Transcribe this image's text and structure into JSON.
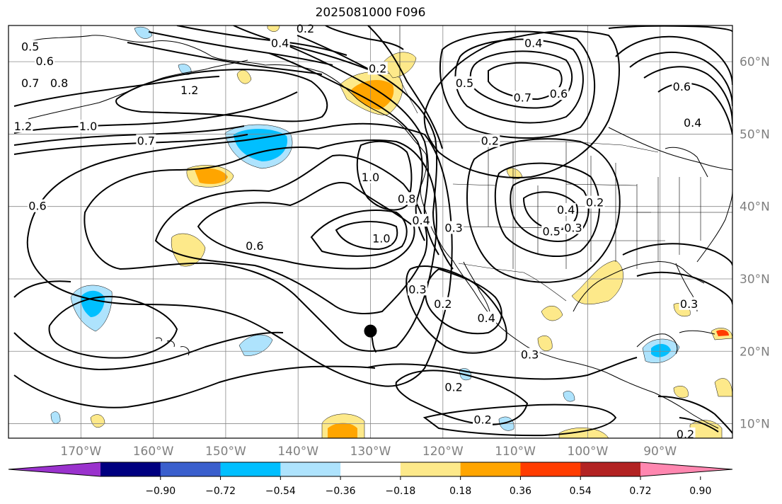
{
  "title": "2025081000 F096",
  "map": {
    "lon_range": [
      -180,
      -80
    ],
    "lat_range": [
      8,
      65
    ],
    "lon_ticks": [
      {
        "lon": -170,
        "label": "170°W"
      },
      {
        "lon": -160,
        "label": "160°W"
      },
      {
        "lon": -150,
        "label": "150°W"
      },
      {
        "lon": -140,
        "label": "140°W"
      },
      {
        "lon": -130,
        "label": "130°W"
      },
      {
        "lon": -120,
        "label": "120°W"
      },
      {
        "lon": -110,
        "label": "110°W"
      },
      {
        "lon": -100,
        "label": "100°W"
      },
      {
        "lon": -90,
        "label": "90°W"
      }
    ],
    "lat_ticks": [
      {
        "lat": 10,
        "label": "10°N"
      },
      {
        "lat": 20,
        "label": "20°N"
      },
      {
        "lat": 30,
        "label": "30°N"
      },
      {
        "lat": 40,
        "label": "40°N"
      },
      {
        "lat": 50,
        "label": "50°N"
      },
      {
        "lat": 60,
        "label": "60°N"
      }
    ],
    "marker": {
      "lon": -130,
      "lat": 22.8,
      "label": "storm-center"
    },
    "contour_labels": [
      {
        "text": "0.5",
        "lon": -177,
        "lat": 62
      },
      {
        "text": "0.6",
        "lon": -175,
        "lat": 60
      },
      {
        "text": "0.7",
        "lon": -177,
        "lat": 57
      },
      {
        "text": "0.8",
        "lon": -173,
        "lat": 57
      },
      {
        "text": "1.2",
        "lon": -155,
        "lat": 56
      },
      {
        "text": "1.2",
        "lon": -178,
        "lat": 51
      },
      {
        "text": "1.0",
        "lon": -169,
        "lat": 51
      },
      {
        "text": "0.7",
        "lon": -161,
        "lat": 49
      },
      {
        "text": "0.6",
        "lon": -176,
        "lat": 40
      },
      {
        "text": "0.6",
        "lon": -146,
        "lat": 34.5
      },
      {
        "text": "1.0",
        "lon": -130,
        "lat": 44
      },
      {
        "text": "1.0",
        "lon": -128.5,
        "lat": 35.5
      },
      {
        "text": "0.8",
        "lon": -125,
        "lat": 41
      },
      {
        "text": "0.4",
        "lon": -123,
        "lat": 38
      },
      {
        "text": "0.3",
        "lon": -118.5,
        "lat": 37
      },
      {
        "text": "0.3",
        "lon": -123.5,
        "lat": 28.5
      },
      {
        "text": "0.2",
        "lon": -120,
        "lat": 26.5
      },
      {
        "text": "0.4",
        "lon": -114,
        "lat": 24.5
      },
      {
        "text": "0.3",
        "lon": -108,
        "lat": 19.5
      },
      {
        "text": "0.2",
        "lon": -118.5,
        "lat": 15
      },
      {
        "text": "0.2",
        "lon": -114.5,
        "lat": 10.5
      },
      {
        "text": "0.4",
        "lon": -142.5,
        "lat": 62.5
      },
      {
        "text": "0.2",
        "lon": -139,
        "lat": 64.5
      },
      {
        "text": "0.2",
        "lon": -129,
        "lat": 59
      },
      {
        "text": "0.4",
        "lon": -107.5,
        "lat": 62.5
      },
      {
        "text": "0.5",
        "lon": -117,
        "lat": 57
      },
      {
        "text": "0.7",
        "lon": -109,
        "lat": 55
      },
      {
        "text": "0.6",
        "lon": -104,
        "lat": 55.5
      },
      {
        "text": "0.2",
        "lon": -113.5,
        "lat": 49
      },
      {
        "text": "0.5",
        "lon": -105,
        "lat": 36.5
      },
      {
        "text": "0.4",
        "lon": -103,
        "lat": 39.5
      },
      {
        "text": "0.3",
        "lon": -102,
        "lat": 37
      },
      {
        "text": "0.2",
        "lon": -99,
        "lat": 40.5
      },
      {
        "text": "0.6",
        "lon": -87,
        "lat": 56.5
      },
      {
        "text": "0.4",
        "lon": -85.5,
        "lat": 51.5
      },
      {
        "text": "0.3",
        "lon": -86,
        "lat": 26.5
      },
      {
        "text": "0.2",
        "lon": -86.5,
        "lat": 8.5
      }
    ]
  },
  "colorbar": {
    "colors": [
      "#9a32cd",
      "#000080",
      "#3a5fcd",
      "#00bfff",
      "#aee3fd",
      "#ffffff",
      "#fde98a",
      "#ffa500",
      "#ff3c00",
      "#b22222",
      "#ff87b0"
    ],
    "tick_labels": [
      "−0.90",
      "−0.72",
      "−0.54",
      "−0.36",
      "−0.18",
      "0.18",
      "0.36",
      "0.54",
      "0.72",
      "0.90"
    ]
  }
}
